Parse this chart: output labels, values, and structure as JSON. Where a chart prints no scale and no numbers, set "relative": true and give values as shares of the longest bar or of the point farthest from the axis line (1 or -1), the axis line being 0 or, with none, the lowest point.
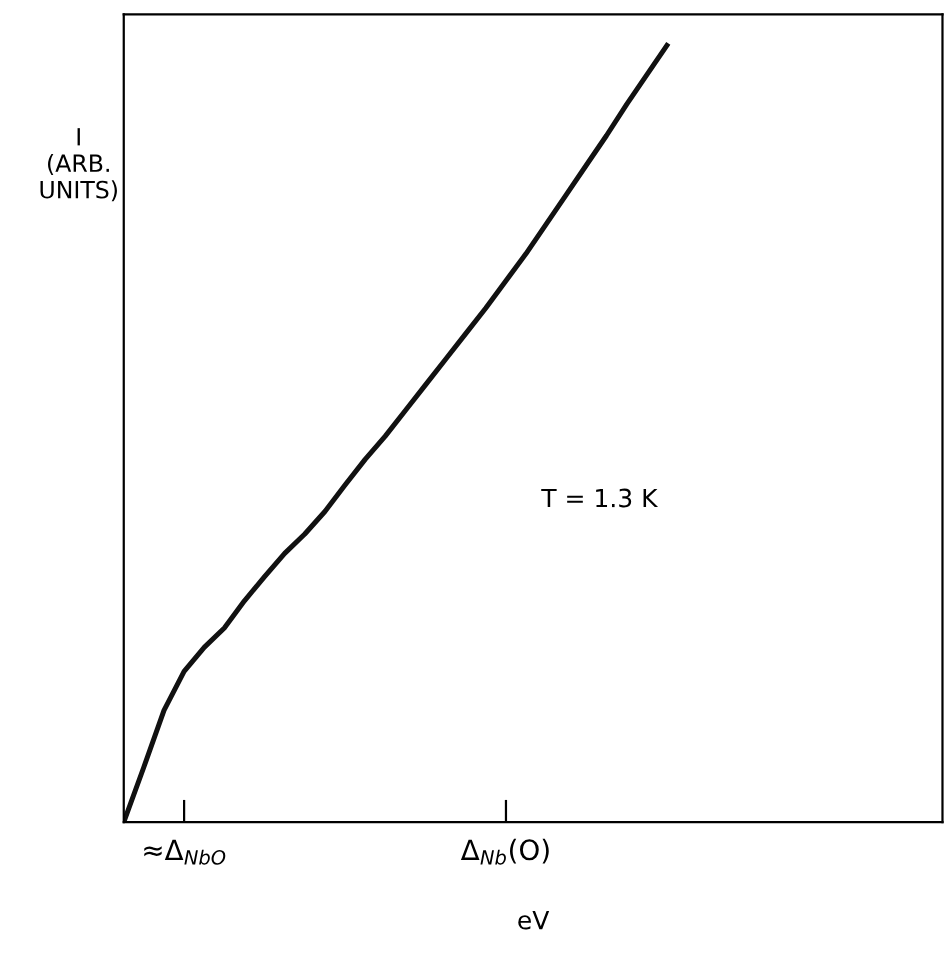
{
  "chart_data": {
    "type": "line",
    "relative": true,
    "ylabel": "I\n(ARB.\nUNITS)",
    "xlabel": "eV",
    "categories": [
      null,
      null,
      null,
      "≈Δ$_{NbO}$",
      null,
      null,
      null,
      null,
      null,
      null,
      null,
      null,
      null,
      null,
      null,
      null,
      null,
      null,
      null,
      "Δ$_{Nb}$(O)",
      null,
      null,
      null,
      null,
      null,
      null,
      null,
      null,
      null,
      null,
      null,
      null,
      null,
      null,
      null,
      null,
      null,
      null,
      null,
      null,
      null
    ],
    "series": [
      {
        "color": "#111111",
        "values": [
          0,
          0.071,
          0.144,
          0.194,
          0.225,
          0.25,
          0.285,
          0.316,
          0.346,
          0.371,
          0.4,
          0.434,
          0.467,
          0.497,
          0.53,
          0.563,
          0.596,
          0.629,
          0.662,
          0.697,
          0.732,
          0.77,
          0.808,
          0.846,
          0.884,
          0.924,
          0.962,
          1,
          null,
          null,
          null,
          null,
          null,
          null,
          null,
          null,
          null,
          null,
          null,
          null,
          null
        ]
      }
    ],
    "annotations": [
      "T = 1.3 K"
    ],
    "grid": false,
    "legend": false
  }
}
